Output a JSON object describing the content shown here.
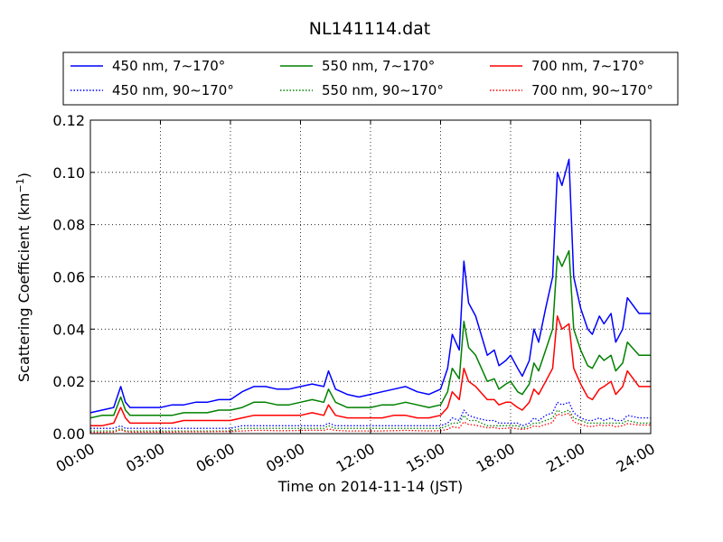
{
  "chart_data": {
    "type": "line",
    "title": "NL141114.dat",
    "xlabel": "Time on 2014-11-14 (JST)",
    "ylabel": "Scattering Coefficient (km",
    "ylabel_sup": "−1",
    "ylabel_tail": ")",
    "xlim": [
      0,
      24
    ],
    "ylim": [
      0,
      0.12
    ],
    "grid": true,
    "legend_position": "top",
    "x_ticks": [
      {
        "value": 0,
        "label": "00:00"
      },
      {
        "value": 3,
        "label": "03:00"
      },
      {
        "value": 6,
        "label": "06:00"
      },
      {
        "value": 9,
        "label": "09:00"
      },
      {
        "value": 12,
        "label": "12:00"
      },
      {
        "value": 15,
        "label": "15:00"
      },
      {
        "value": 18,
        "label": "18:00"
      },
      {
        "value": 21,
        "label": "21:00"
      },
      {
        "value": 24,
        "label": "24:00"
      }
    ],
    "y_ticks": [
      {
        "value": 0,
        "label": "0.00"
      },
      {
        "value": 0.02,
        "label": "0.02"
      },
      {
        "value": 0.04,
        "label": "0.04"
      },
      {
        "value": 0.06,
        "label": "0.06"
      },
      {
        "value": 0.08,
        "label": "0.08"
      },
      {
        "value": 0.1,
        "label": "0.10"
      },
      {
        "value": 0.12,
        "label": "0.12"
      }
    ],
    "x": [
      0,
      0.5,
      1,
      1.3,
      1.5,
      1.7,
      2,
      2.5,
      3,
      3.5,
      4,
      4.5,
      5,
      5.5,
      6,
      6.5,
      7,
      7.5,
      8,
      8.5,
      9,
      9.5,
      10,
      10.2,
      10.5,
      11,
      11.5,
      12,
      12.5,
      13,
      13.5,
      14,
      14.5,
      15,
      15.3,
      15.5,
      15.8,
      16,
      16.2,
      16.5,
      17,
      17.3,
      17.5,
      17.8,
      18,
      18.3,
      18.5,
      18.8,
      19,
      19.2,
      19.5,
      19.8,
      20,
      20.2,
      20.5,
      20.7,
      21,
      21.3,
      21.5,
      21.8,
      22,
      22.3,
      22.5,
      22.8,
      23,
      23.5,
      24
    ],
    "series": [
      {
        "name": "450 nm, 7∼170°",
        "color": "#0000ff",
        "style": "solid",
        "values": [
          0.008,
          0.009,
          0.01,
          0.018,
          0.012,
          0.01,
          0.01,
          0.01,
          0.01,
          0.011,
          0.011,
          0.012,
          0.012,
          0.013,
          0.013,
          0.016,
          0.018,
          0.018,
          0.017,
          0.017,
          0.018,
          0.019,
          0.018,
          0.024,
          0.017,
          0.015,
          0.014,
          0.015,
          0.016,
          0.017,
          0.018,
          0.016,
          0.015,
          0.017,
          0.025,
          0.038,
          0.032,
          0.066,
          0.05,
          0.045,
          0.03,
          0.032,
          0.026,
          0.028,
          0.03,
          0.025,
          0.022,
          0.028,
          0.04,
          0.035,
          0.048,
          0.06,
          0.1,
          0.095,
          0.105,
          0.06,
          0.048,
          0.04,
          0.038,
          0.045,
          0.042,
          0.046,
          0.035,
          0.04,
          0.052,
          0.046,
          0.046
        ]
      },
      {
        "name": "450 nm, 90∼170°",
        "color": "#0000ff",
        "style": "dotted",
        "values": [
          0.002,
          0.002,
          0.002,
          0.003,
          0.002,
          0.002,
          0.002,
          0.002,
          0.002,
          0.002,
          0.002,
          0.002,
          0.002,
          0.002,
          0.002,
          0.003,
          0.003,
          0.003,
          0.003,
          0.003,
          0.003,
          0.003,
          0.003,
          0.004,
          0.003,
          0.003,
          0.003,
          0.003,
          0.003,
          0.003,
          0.003,
          0.003,
          0.003,
          0.003,
          0.004,
          0.006,
          0.005,
          0.009,
          0.007,
          0.006,
          0.005,
          0.005,
          0.004,
          0.004,
          0.004,
          0.004,
          0.003,
          0.004,
          0.006,
          0.005,
          0.007,
          0.008,
          0.012,
          0.011,
          0.012,
          0.008,
          0.006,
          0.005,
          0.005,
          0.006,
          0.005,
          0.006,
          0.005,
          0.005,
          0.007,
          0.006,
          0.006
        ]
      },
      {
        "name": "550 nm, 7∼170°",
        "color": "#008000",
        "style": "solid",
        "values": [
          0.006,
          0.007,
          0.007,
          0.014,
          0.009,
          0.007,
          0.007,
          0.007,
          0.007,
          0.007,
          0.008,
          0.008,
          0.008,
          0.009,
          0.009,
          0.01,
          0.012,
          0.012,
          0.011,
          0.011,
          0.012,
          0.013,
          0.012,
          0.017,
          0.012,
          0.01,
          0.01,
          0.01,
          0.011,
          0.011,
          0.012,
          0.011,
          0.01,
          0.011,
          0.016,
          0.025,
          0.021,
          0.043,
          0.033,
          0.03,
          0.02,
          0.021,
          0.017,
          0.019,
          0.02,
          0.016,
          0.015,
          0.019,
          0.027,
          0.024,
          0.032,
          0.04,
          0.068,
          0.064,
          0.07,
          0.04,
          0.032,
          0.026,
          0.025,
          0.03,
          0.028,
          0.03,
          0.024,
          0.027,
          0.035,
          0.03,
          0.03
        ]
      },
      {
        "name": "550 nm, 90∼170°",
        "color": "#008000",
        "style": "dotted",
        "values": [
          0.001,
          0.001,
          0.001,
          0.002,
          0.001,
          0.001,
          0.001,
          0.001,
          0.001,
          0.001,
          0.001,
          0.001,
          0.001,
          0.001,
          0.001,
          0.002,
          0.002,
          0.002,
          0.002,
          0.002,
          0.002,
          0.002,
          0.002,
          0.003,
          0.002,
          0.002,
          0.002,
          0.002,
          0.002,
          0.002,
          0.002,
          0.002,
          0.002,
          0.002,
          0.003,
          0.004,
          0.004,
          0.007,
          0.005,
          0.005,
          0.003,
          0.003,
          0.003,
          0.003,
          0.003,
          0.003,
          0.002,
          0.003,
          0.004,
          0.004,
          0.005,
          0.006,
          0.009,
          0.008,
          0.009,
          0.006,
          0.005,
          0.004,
          0.004,
          0.004,
          0.004,
          0.004,
          0.004,
          0.004,
          0.005,
          0.004,
          0.004
        ]
      },
      {
        "name": "700 nm, 7∼170°",
        "color": "#ff0000",
        "style": "solid",
        "values": [
          0.003,
          0.003,
          0.004,
          0.01,
          0.006,
          0.004,
          0.004,
          0.004,
          0.004,
          0.004,
          0.005,
          0.005,
          0.005,
          0.005,
          0.005,
          0.006,
          0.007,
          0.007,
          0.007,
          0.007,
          0.007,
          0.008,
          0.007,
          0.011,
          0.007,
          0.006,
          0.006,
          0.006,
          0.006,
          0.007,
          0.007,
          0.006,
          0.006,
          0.007,
          0.01,
          0.016,
          0.013,
          0.025,
          0.02,
          0.018,
          0.013,
          0.013,
          0.011,
          0.012,
          0.012,
          0.01,
          0.009,
          0.012,
          0.017,
          0.015,
          0.02,
          0.025,
          0.045,
          0.04,
          0.042,
          0.025,
          0.019,
          0.014,
          0.013,
          0.017,
          0.018,
          0.02,
          0.015,
          0.018,
          0.024,
          0.018,
          0.018
        ]
      },
      {
        "name": "700 nm, 90∼170°",
        "color": "#ff0000",
        "style": "dotted",
        "values": [
          0.0005,
          0.0005,
          0.0006,
          0.0015,
          0.0008,
          0.0006,
          0.0006,
          0.0006,
          0.0006,
          0.0006,
          0.0007,
          0.0007,
          0.0007,
          0.0008,
          0.0008,
          0.001,
          0.0012,
          0.0012,
          0.0011,
          0.0011,
          0.0012,
          0.0013,
          0.0012,
          0.0018,
          0.0012,
          0.001,
          0.001,
          0.001,
          0.001,
          0.0011,
          0.0012,
          0.0011,
          0.001,
          0.0011,
          0.0016,
          0.0026,
          0.0022,
          0.0045,
          0.0035,
          0.0032,
          0.0022,
          0.0023,
          0.0019,
          0.002,
          0.0022,
          0.0018,
          0.0016,
          0.002,
          0.003,
          0.0026,
          0.0035,
          0.0043,
          0.0075,
          0.007,
          0.0078,
          0.0045,
          0.0035,
          0.0028,
          0.0027,
          0.0033,
          0.003,
          0.0033,
          0.0026,
          0.003,
          0.0038,
          0.0033,
          0.0033
        ]
      }
    ]
  }
}
